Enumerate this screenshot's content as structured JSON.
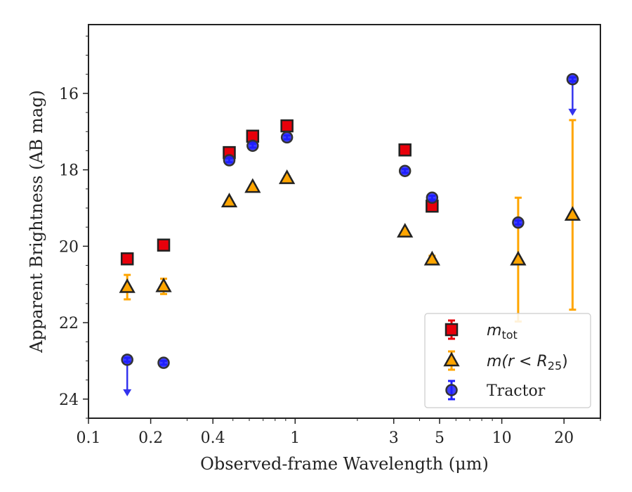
{
  "chart_data": {
    "type": "scatter",
    "xlabel": "Observed-frame Wavelength (μm)",
    "ylabel": "Apparent Brightness (AB mag)",
    "x_scale": "log",
    "xlim": [
      0.1,
      30
    ],
    "ylim": [
      24.5,
      14.2
    ],
    "y_inverted": true,
    "x_ticks": [
      0.1,
      0.2,
      0.4,
      1,
      3,
      5,
      10,
      20
    ],
    "x_tick_labels": [
      "0.1",
      "0.2",
      "0.4",
      "1",
      "3",
      "5",
      "10",
      "20"
    ],
    "y_ticks": [
      16,
      18,
      20,
      22,
      24
    ],
    "y_tick_labels": [
      "16",
      "18",
      "20",
      "22",
      "24"
    ],
    "legend_position": "bottom-right",
    "legend": {
      "m_tot_main": "m",
      "m_tot_sub": "tot",
      "m_r_main": "m(r < R",
      "m_r_sub": "25",
      "m_r_close": ")",
      "tractor": "Tractor"
    },
    "series": [
      {
        "name": "m_tot",
        "marker": "square",
        "color": "#e8000b",
        "errcolor": "#e8000b",
        "points": [
          {
            "x": 0.154,
            "y": 20.33,
            "err": 0.05
          },
          {
            "x": 0.231,
            "y": 19.97,
            "err": 0.05
          },
          {
            "x": 0.48,
            "y": 17.55,
            "err": 0.05
          },
          {
            "x": 0.623,
            "y": 17.12,
            "err": 0.05
          },
          {
            "x": 0.913,
            "y": 16.85,
            "err": 0.05
          },
          {
            "x": 3.4,
            "y": 17.48,
            "err": 0.05
          },
          {
            "x": 4.6,
            "y": 18.95,
            "err": 0.06
          }
        ]
      },
      {
        "name": "m(r < R25)",
        "marker": "triangle",
        "color": "#ffa500",
        "errcolor": "#ffa500",
        "points": [
          {
            "x": 0.154,
            "y": 21.07,
            "err": 0.32
          },
          {
            "x": 0.231,
            "y": 21.05,
            "err": 0.2
          },
          {
            "x": 0.48,
            "y": 18.83,
            "err": 0.05
          },
          {
            "x": 0.623,
            "y": 18.45,
            "err": 0.05
          },
          {
            "x": 0.913,
            "y": 18.22,
            "err": 0.05
          },
          {
            "x": 3.4,
            "y": 19.62,
            "err": 0.05
          },
          {
            "x": 4.6,
            "y": 20.35,
            "err": 0.1
          },
          {
            "x": 12.0,
            "y": 20.35,
            "err": 1.62
          },
          {
            "x": 22.0,
            "y": 19.18,
            "err": 2.48
          }
        ]
      },
      {
        "name": "Tractor",
        "marker": "circle",
        "color": "#1f1fff",
        "errcolor": "#2020ff",
        "points": [
          {
            "x": 0.154,
            "y": 22.97,
            "err": 0.05,
            "limit": true
          },
          {
            "x": 0.231,
            "y": 23.05,
            "err": 0.05
          },
          {
            "x": 0.48,
            "y": 17.75,
            "err": 0.05
          },
          {
            "x": 0.623,
            "y": 17.37,
            "err": 0.05
          },
          {
            "x": 0.913,
            "y": 17.15,
            "err": 0.05
          },
          {
            "x": 3.4,
            "y": 18.03,
            "err": 0.05
          },
          {
            "x": 4.6,
            "y": 18.73,
            "err": 0.05
          },
          {
            "x": 12.0,
            "y": 19.38,
            "err": 0.05
          },
          {
            "x": 22.0,
            "y": 15.63,
            "err": 0.05,
            "limit": true
          }
        ]
      }
    ]
  }
}
